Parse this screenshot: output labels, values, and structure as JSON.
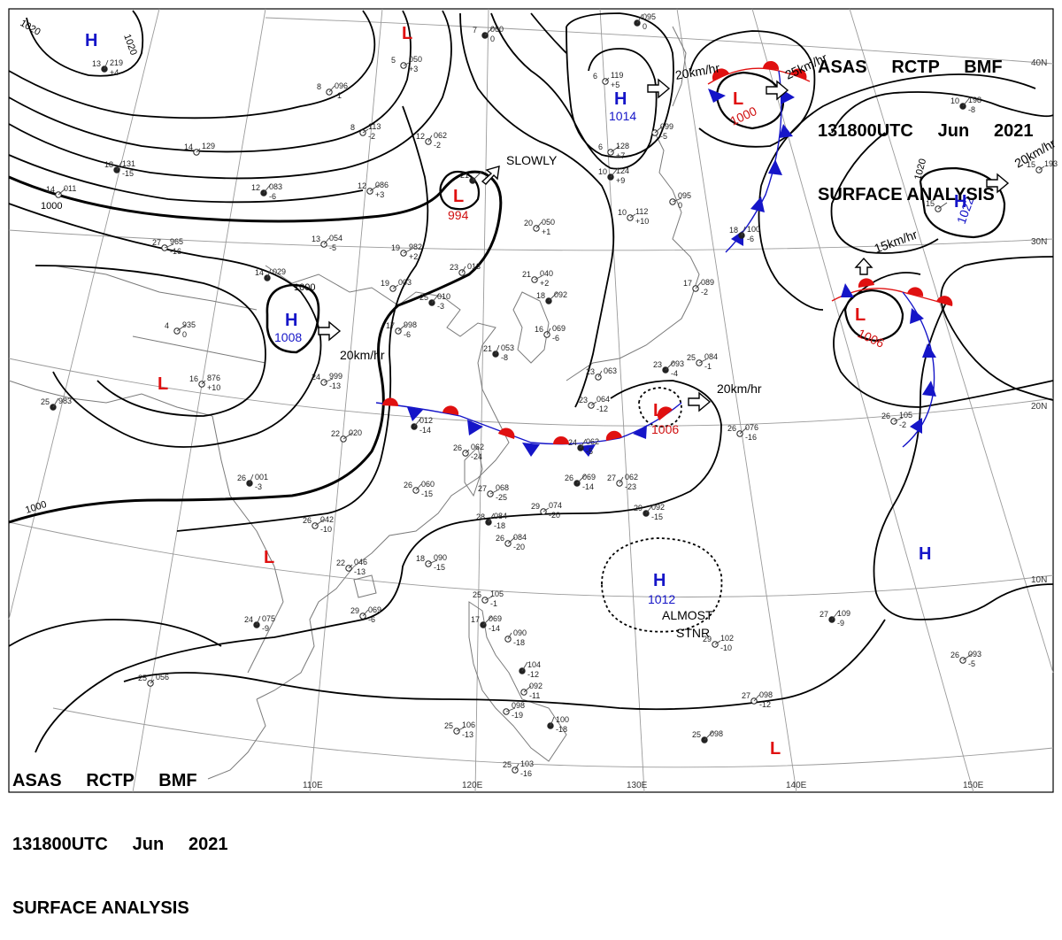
{
  "header": {
    "line1": [
      "ASAS",
      "RCTP",
      "BMF"
    ],
    "line2": [
      "131800UTC",
      "Jun",
      "2021"
    ],
    "line3": "SURFACE ANALYSIS"
  },
  "colors": {
    "high": "#1515c8",
    "low": "#e01010",
    "warm_front": "#e01010",
    "cold_front": "#1515c8",
    "isobar": "#000000",
    "coast": "#7a7a7a",
    "grid": "#9a9a9a"
  },
  "longitude_labels": [
    "110E",
    "120E",
    "130E",
    "140E",
    "150E"
  ],
  "latitude_labels": [
    "40N",
    "30N",
    "20N",
    "10N"
  ],
  "isobar_labels": [
    "1020",
    "1020",
    "1000",
    "1000",
    "1000",
    "1020"
  ],
  "pressure_centers": [
    {
      "type": "H",
      "value": ""
    },
    {
      "type": "L",
      "value": ""
    },
    {
      "type": "L",
      "value": "994"
    },
    {
      "type": "H",
      "value": "1014"
    },
    {
      "type": "L",
      "value": "1000"
    },
    {
      "type": "H",
      "value": "1022"
    },
    {
      "type": "H",
      "value": "1008"
    },
    {
      "type": "L",
      "value": "1006"
    },
    {
      "type": "L",
      "value": ""
    },
    {
      "type": "L",
      "value": "1006"
    },
    {
      "type": "L",
      "value": ""
    },
    {
      "type": "H",
      "value": "1012"
    },
    {
      "type": "H",
      "value": ""
    },
    {
      "type": "L",
      "value": ""
    }
  ],
  "motion_labels": [
    "SLOWLY",
    "20km/hr",
    "20km/hr",
    "20km/hr",
    "25km/hr",
    "20km/hr",
    "15km/hr",
    "ALMOST",
    "STNR"
  ],
  "stations": [
    {
      "temp": "13",
      "pres": "219",
      "tend": "+4"
    },
    {
      "temp": "8",
      "pres": "096",
      "tend": "-1"
    },
    {
      "temp": "5",
      "pres": "050",
      "tend": "+3"
    },
    {
      "temp": "7",
      "pres": "060",
      "tend": "0"
    },
    {
      "temp": "12",
      "pres": "062",
      "tend": "-2"
    },
    {
      "temp": "8",
      "pres": "113",
      "tend": "-2"
    },
    {
      "temp": "12",
      "pres": "083",
      "tend": "-6"
    },
    {
      "temp": "12",
      "pres": "086",
      "tend": "+3"
    },
    {
      "temp": "14",
      "pres": "129",
      "tend": ""
    },
    {
      "temp": "18",
      "pres": "131",
      "tend": "-15"
    },
    {
      "temp": "14",
      "pres": "011",
      "tend": ""
    },
    {
      "temp": "27",
      "pres": "965",
      "tend": "-16"
    },
    {
      "temp": "14",
      "pres": "029",
      "tend": ""
    },
    {
      "temp": "13",
      "pres": "054",
      "tend": "-5"
    },
    {
      "temp": "19",
      "pres": "982",
      "tend": "+2"
    },
    {
      "temp": "21",
      "pres": "",
      "tend": ""
    },
    {
      "temp": "23",
      "pres": "013",
      "tend": ""
    },
    {
      "temp": "19",
      "pres": "003",
      "tend": ""
    },
    {
      "temp": "25",
      "pres": "010",
      "tend": "-3"
    },
    {
      "temp": "4",
      "pres": "935",
      "tend": "0"
    },
    {
      "temp": "16",
      "pres": "876",
      "tend": "+10"
    },
    {
      "temp": "25",
      "pres": "983",
      "tend": ""
    },
    {
      "temp": "17",
      "pres": "998",
      "tend": "-6"
    },
    {
      "temp": "24",
      "pres": "999",
      "tend": "-13"
    },
    {
      "temp": "21",
      "pres": "053",
      "tend": "-8"
    },
    {
      "temp": "20",
      "pres": "050",
      "tend": "+1"
    },
    {
      "temp": "21",
      "pres": "040",
      "tend": "+2"
    },
    {
      "temp": "18",
      "pres": "092",
      "tend": ""
    },
    {
      "temp": "16",
      "pres": "069",
      "tend": "-6"
    },
    {
      "temp": "10",
      "pres": "112",
      "tend": "+10"
    },
    {
      "temp": "10",
      "pres": "124",
      "tend": "+9"
    },
    {
      "temp": "6",
      "pres": "128",
      "tend": "+7"
    },
    {
      "temp": "6",
      "pres": "119",
      "tend": "+5"
    },
    {
      "temp": "",
      "pres": "095",
      "tend": "0"
    },
    {
      "temp": "",
      "pres": "099",
      "tend": "-5"
    },
    {
      "temp": "",
      "pres": "095",
      "tend": "0"
    },
    {
      "temp": "18",
      "pres": "100",
      "tend": "-6"
    },
    {
      "temp": "17",
      "pres": "089",
      "tend": "-2"
    },
    {
      "temp": "25",
      "pres": "084",
      "tend": "-1"
    },
    {
      "temp": "23",
      "pres": "093",
      "tend": "-4"
    },
    {
      "temp": "23",
      "pres": "063",
      "tend": ""
    },
    {
      "temp": "23",
      "pres": "064",
      "tend": "-12"
    },
    {
      "temp": "",
      "pres": "012",
      "tend": "-14"
    },
    {
      "temp": "22",
      "pres": "020",
      "tend": ""
    },
    {
      "temp": "26",
      "pres": "062",
      "tend": "-24"
    },
    {
      "temp": "24",
      "pres": "062",
      "tend": "-5"
    },
    {
      "temp": "26",
      "pres": "076",
      "tend": "-16"
    },
    {
      "temp": "26",
      "pres": "105",
      "tend": "-2"
    },
    {
      "temp": "26",
      "pres": "001",
      "tend": "-3"
    },
    {
      "temp": "26",
      "pres": "060",
      "tend": "-15"
    },
    {
      "temp": "27",
      "pres": "068",
      "tend": "-25"
    },
    {
      "temp": "26",
      "pres": "069",
      "tend": "-14"
    },
    {
      "temp": "27",
      "pres": "062",
      "tend": "-23"
    },
    {
      "temp": "29",
      "pres": "074",
      "tend": "-20"
    },
    {
      "temp": "29",
      "pres": "092",
      "tend": "-15"
    },
    {
      "temp": "26",
      "pres": "042",
      "tend": "-10"
    },
    {
      "temp": "22",
      "pres": "046",
      "tend": "-13"
    },
    {
      "temp": "28",
      "pres": "084",
      "tend": "-18"
    },
    {
      "temp": "26",
      "pres": "084",
      "tend": "-20"
    },
    {
      "temp": "18",
      "pres": "090",
      "tend": "-15"
    },
    {
      "temp": "24",
      "pres": "075",
      "tend": "-9"
    },
    {
      "temp": "29",
      "pres": "069",
      "tend": "-6"
    },
    {
      "temp": "25",
      "pres": "105",
      "tend": "-1"
    },
    {
      "temp": "17",
      "pres": "069",
      "tend": "-14"
    },
    {
      "temp": "",
      "pres": "090",
      "tend": "-18"
    },
    {
      "temp": "29",
      "pres": "102",
      "tend": "-10"
    },
    {
      "temp": "27",
      "pres": "109",
      "tend": "-9"
    },
    {
      "temp": "26",
      "pres": "093",
      "tend": "-5"
    },
    {
      "temp": "25",
      "pres": "056",
      "tend": ""
    },
    {
      "temp": "",
      "pres": "104",
      "tend": "-12"
    },
    {
      "temp": "",
      "pres": "092",
      "tend": "-11"
    },
    {
      "temp": "",
      "pres": "098",
      "tend": "-19"
    },
    {
      "temp": "",
      "pres": "100",
      "tend": "-18"
    },
    {
      "temp": "27",
      "pres": "098",
      "tend": "-12"
    },
    {
      "temp": "25",
      "pres": "106",
      "tend": "-13"
    },
    {
      "temp": "25",
      "pres": "098",
      "tend": ""
    },
    {
      "temp": "25",
      "pres": "103",
      "tend": "-16"
    },
    {
      "temp": "15",
      "pres": "193",
      "tend": ""
    },
    {
      "temp": "10",
      "pres": "198",
      "tend": "-8"
    },
    {
      "temp": "15",
      "pres": "",
      "tend": ""
    }
  ]
}
